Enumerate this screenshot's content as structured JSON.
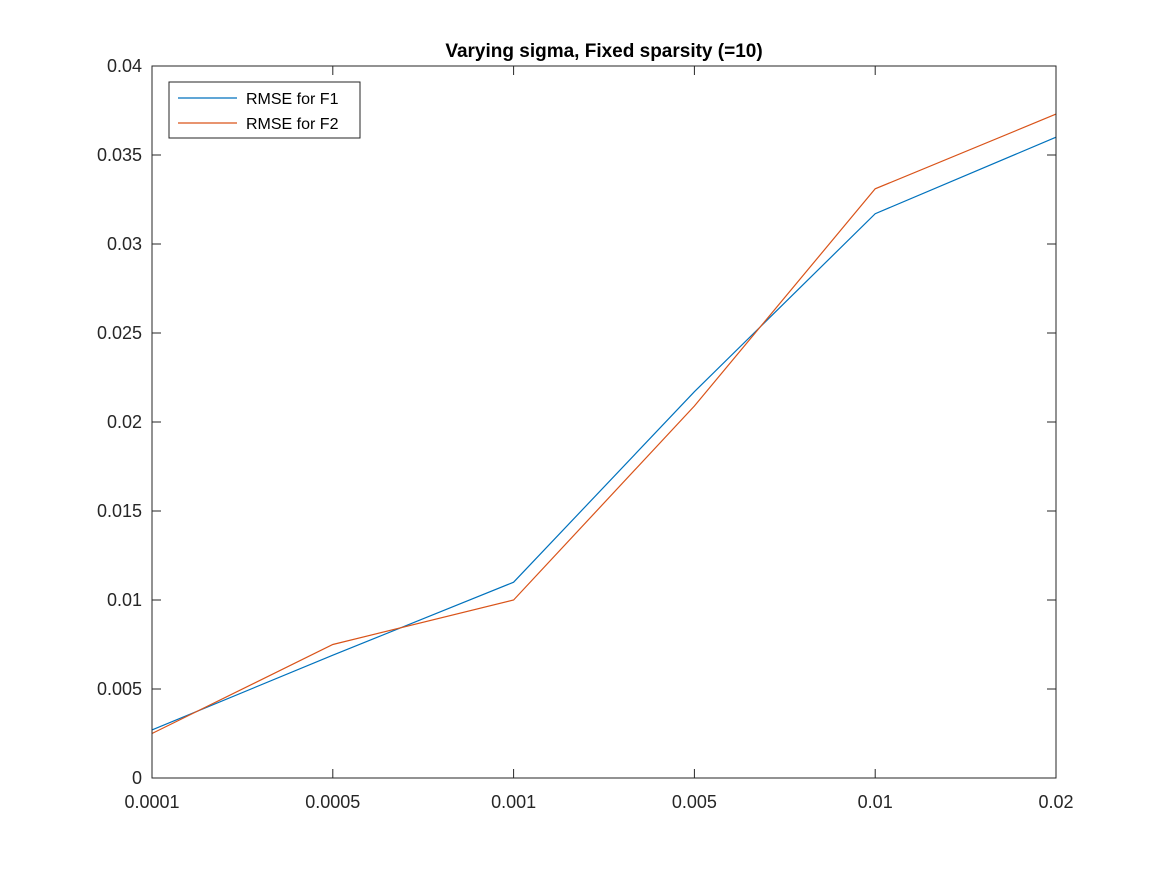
{
  "chart_data": {
    "type": "line",
    "title": "Varying sigma, Fixed sparsity (=10)",
    "xlabel": "",
    "ylabel": "",
    "categories": [
      "0.0001",
      "0.0005",
      "0.001",
      "0.005",
      "0.01",
      "0.02"
    ],
    "yticks": [
      "0",
      "0.005",
      "0.01",
      "0.015",
      "0.02",
      "0.025",
      "0.03",
      "0.035",
      "0.04"
    ],
    "ylim": [
      0,
      0.04
    ],
    "grid": false,
    "legend_position": "top-left",
    "series": [
      {
        "name": "RMSE for F1",
        "color": "#0072BD",
        "values": [
          0.0027,
          0.0069,
          0.011,
          0.0217,
          0.0317,
          0.036
        ]
      },
      {
        "name": "RMSE for F2",
        "color": "#D95319",
        "values": [
          0.0025,
          0.0075,
          0.01,
          0.0209,
          0.0331,
          0.0373
        ]
      }
    ]
  }
}
